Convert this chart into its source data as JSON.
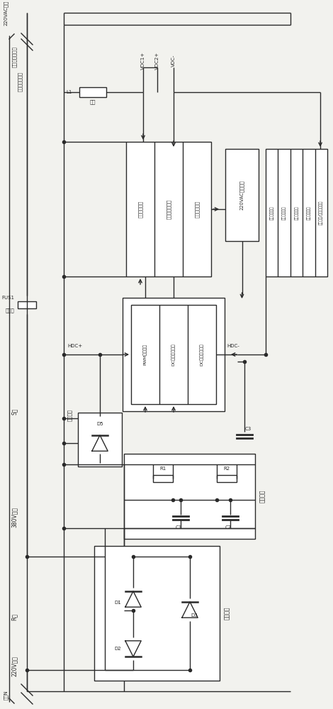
{
  "bg": "#f2f2ee",
  "lc": "#2a2a2a",
  "lw": 1.0,
  "fig_w": 4.7,
  "fig_h": 10.0,
  "vdc_labels": [
    "VDC1+",
    "VDC2+",
    "VDC-"
  ],
  "l1_label": "L1",
  "l1_sub": "线包",
  "fus1_label": "FUS1",
  "fuse_label": "保险丝",
  "hdc_p": "HDC+",
  "hdc_m": "HDC-",
  "half_rect": "半波整流",
  "inv_texts": [
    "双管正波变换",
    "高频隔离变压器",
    "输出整流滤波"
  ],
  "pwm_texts": [
    "PWM驱动芯片",
    "DC电压欠压检测",
    "DC电压过压检测"
  ],
  "ctrl_text": "220VAC输出控制",
  "prot_texts": [
    "采样反馈稳压",
    "输出过流保护",
    "输出过压保护",
    "温度过温保护",
    "风机温控/根据功率选择"
  ],
  "filt_label": "滤波电路",
  "rect_label": "整流电路",
  "top_label1": "220VAC输出",
  "top_label2": "继电器或接触器",
  "bot_labels": [
    "零线N",
    "220V交流",
    "R相",
    "380V交流",
    "S相"
  ]
}
